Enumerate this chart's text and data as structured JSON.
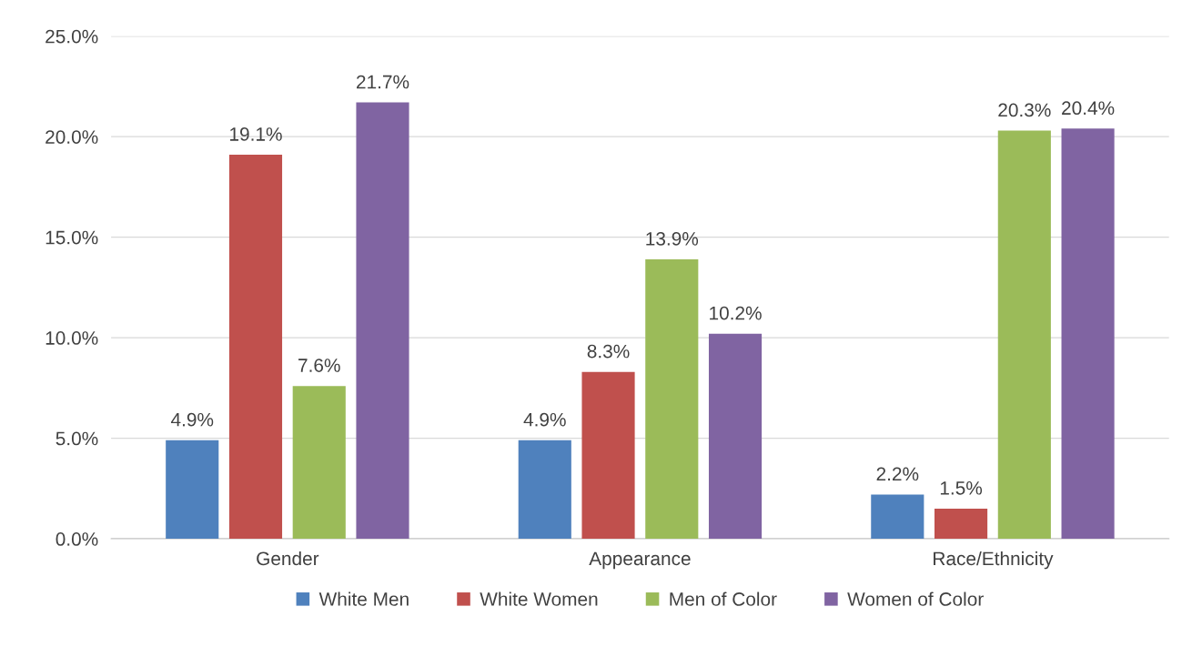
{
  "chart_data": {
    "type": "bar",
    "categories": [
      "Gender",
      "Appearance",
      "Race/Ethnicity"
    ],
    "series": [
      {
        "name": "White Men",
        "color": "#4f81bd",
        "values": [
          4.9,
          4.9,
          2.2
        ],
        "value_labels": [
          "4.9%",
          "4.9%",
          "2.2%"
        ]
      },
      {
        "name": "White Women",
        "color": "#c0504d",
        "values": [
          19.1,
          8.3,
          1.5
        ],
        "value_labels": [
          "19.1%",
          "8.3%",
          "1.5%"
        ]
      },
      {
        "name": "Men of Color",
        "color": "#9bbb59",
        "values": [
          7.6,
          13.9,
          20.3
        ],
        "value_labels": [
          "7.6%",
          "13.9%",
          "20.3%"
        ]
      },
      {
        "name": "Women of Color",
        "color": "#8064a2",
        "values": [
          21.7,
          10.2,
          20.4
        ],
        "value_labels": [
          "21.7%",
          "10.2%",
          "20.4%"
        ]
      }
    ],
    "ylim": [
      0,
      25
    ],
    "yticks": [
      {
        "value": 0,
        "label": "0.0%"
      },
      {
        "value": 5,
        "label": "5.0%"
      },
      {
        "value": 10,
        "label": "10.0%"
      },
      {
        "value": 15,
        "label": "15.0%"
      },
      {
        "value": 20,
        "label": "20.0%"
      },
      {
        "value": 25,
        "label": "25.0%"
      }
    ],
    "grid": "y",
    "legend": "bottom"
  }
}
